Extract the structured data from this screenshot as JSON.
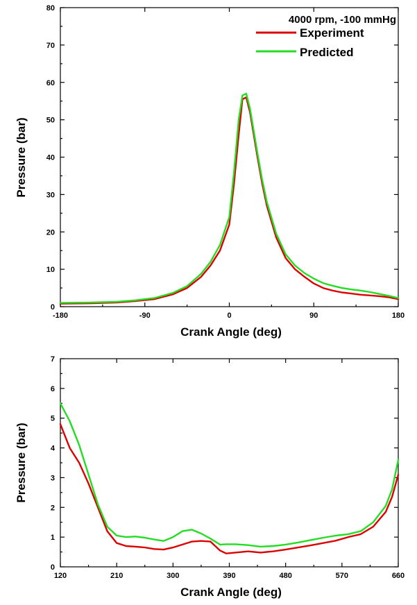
{
  "chart_data": [
    {
      "type": "line",
      "title": "",
      "legend_title": "4000 rpm,  -100 mmHg",
      "legend_position": "top-right",
      "xlabel": "Crank Angle (deg)",
      "ylabel": "Pressure (bar)",
      "xlim": [
        -180,
        180
      ],
      "ylim": [
        0,
        80
      ],
      "xticks": [
        -180,
        -90,
        0,
        90,
        180
      ],
      "yticks": [
        0,
        10,
        20,
        30,
        40,
        50,
        60,
        70,
        80
      ],
      "grid": false,
      "series": [
        {
          "name": "Experiment",
          "color": "#dd0000",
          "x": [
            -180,
            -150,
            -120,
            -100,
            -80,
            -60,
            -45,
            -30,
            -20,
            -10,
            0,
            5,
            10,
            14,
            18,
            22,
            26,
            30,
            35,
            40,
            50,
            60,
            70,
            80,
            90,
            100,
            110,
            120,
            130,
            140,
            150,
            160,
            170,
            180
          ],
          "y": [
            0.8,
            0.9,
            1.1,
            1.5,
            2.0,
            3.3,
            5.0,
            8.0,
            11.0,
            15.0,
            22.0,
            33.0,
            46.0,
            55.5,
            56.0,
            52.0,
            46.0,
            40.0,
            33.0,
            27.0,
            18.5,
            13.0,
            10.0,
            8.0,
            6.2,
            5.0,
            4.3,
            3.8,
            3.5,
            3.2,
            3.0,
            2.8,
            2.5,
            2.0
          ]
        },
        {
          "name": "Predicted",
          "color": "#22dd22",
          "x": [
            -180,
            -150,
            -120,
            -100,
            -80,
            -60,
            -45,
            -30,
            -20,
            -10,
            0,
            5,
            10,
            14,
            18,
            22,
            26,
            30,
            35,
            40,
            50,
            60,
            70,
            80,
            90,
            100,
            110,
            120,
            130,
            140,
            150,
            160,
            170,
            180
          ],
          "y": [
            1.0,
            1.1,
            1.3,
            1.7,
            2.3,
            3.7,
            5.5,
            8.8,
            12.0,
            16.5,
            24.0,
            36.0,
            50.0,
            56.5,
            57.0,
            53.0,
            47.0,
            41.0,
            34.0,
            28.0,
            19.5,
            14.0,
            11.0,
            9.0,
            7.5,
            6.3,
            5.6,
            5.0,
            4.6,
            4.3,
            3.9,
            3.4,
            2.9,
            2.3
          ]
        }
      ]
    },
    {
      "type": "line",
      "title": "",
      "xlabel": "Crank Angle (deg)",
      "ylabel": "Pressure (bar)",
      "xlim": [
        120,
        660
      ],
      "ylim": [
        0,
        7
      ],
      "xticks": [
        120,
        210,
        300,
        390,
        480,
        570,
        660
      ],
      "yticks": [
        0,
        1,
        2,
        3,
        4,
        5,
        6,
        7
      ],
      "grid": false,
      "series": [
        {
          "name": "Experiment",
          "color": "#dd0000",
          "x": [
            120,
            135,
            150,
            165,
            180,
            195,
            210,
            225,
            240,
            255,
            270,
            285,
            300,
            315,
            330,
            345,
            360,
            375,
            385,
            400,
            420,
            440,
            460,
            480,
            500,
            520,
            540,
            560,
            580,
            600,
            620,
            640,
            650,
            660
          ],
          "y": [
            4.8,
            4.0,
            3.5,
            2.8,
            2.0,
            1.2,
            0.8,
            0.7,
            0.68,
            0.65,
            0.6,
            0.58,
            0.65,
            0.75,
            0.85,
            0.87,
            0.85,
            0.55,
            0.45,
            0.48,
            0.52,
            0.48,
            0.52,
            0.58,
            0.65,
            0.72,
            0.8,
            0.88,
            1.0,
            1.1,
            1.35,
            1.85,
            2.35,
            3.1
          ]
        },
        {
          "name": "Predicted",
          "color": "#22dd22",
          "x": [
            120,
            135,
            150,
            165,
            180,
            195,
            210,
            225,
            240,
            255,
            270,
            285,
            300,
            315,
            330,
            345,
            360,
            375,
            385,
            400,
            420,
            440,
            460,
            480,
            500,
            520,
            540,
            560,
            580,
            600,
            620,
            640,
            650,
            660
          ],
          "y": [
            5.5,
            4.9,
            4.1,
            3.1,
            2.1,
            1.35,
            1.05,
            1.0,
            1.02,
            0.98,
            0.92,
            0.87,
            1.0,
            1.2,
            1.25,
            1.12,
            0.95,
            0.75,
            0.76,
            0.76,
            0.73,
            0.68,
            0.7,
            0.75,
            0.82,
            0.9,
            0.98,
            1.05,
            1.1,
            1.2,
            1.5,
            2.05,
            2.6,
            3.6
          ]
        }
      ]
    }
  ]
}
